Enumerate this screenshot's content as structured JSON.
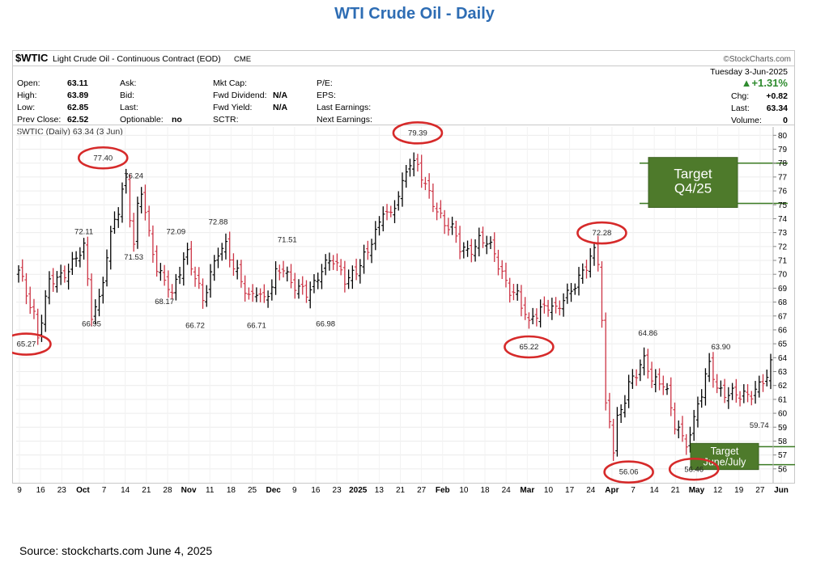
{
  "page": {
    "title": "WTI Crude Oil - Daily",
    "source": "Source: stockcharts.com June 4, 2025"
  },
  "header": {
    "symbol": "$WTIC",
    "description": "Light Crude Oil - Continuous Contract (EOD)",
    "exchange": "CME",
    "brand": "©StockCharts.com",
    "date": "Tuesday  3-Jun-2025",
    "change_pct": "▲+1.31%",
    "chg_label": "Chg:",
    "chg_value": "+0.82",
    "last_label": "Last:",
    "last_value": "63.34",
    "volume_label": "Volume:",
    "volume_value": "0",
    "series_label": "$WTIC (Daily) 63.34 (3 Jun)"
  },
  "stats": {
    "col1": [
      {
        "label": "Open:",
        "value": "63.11"
      },
      {
        "label": "High:",
        "value": "63.89"
      },
      {
        "label": "Low:",
        "value": "62.85"
      },
      {
        "label": "Prev Close:",
        "value": "62.52"
      }
    ],
    "col2": [
      {
        "label": "Ask:",
        "value": ""
      },
      {
        "label": "Bid:",
        "value": ""
      },
      {
        "label": "Last:",
        "value": ""
      },
      {
        "label": "Optionable:",
        "value": "no"
      }
    ],
    "col3": [
      {
        "label": "Mkt Cap:",
        "value": ""
      },
      {
        "label": "Fwd Dividend:",
        "value": "N/A"
      },
      {
        "label": "Fwd Yield:",
        "value": "N/A"
      },
      {
        "label": "SCTR:",
        "value": ""
      }
    ],
    "col4": [
      {
        "label": "P/E:"
      },
      {
        "label": "EPS:"
      },
      {
        "label": "Last Earnings:"
      },
      {
        "label": "Next Earnings:"
      }
    ]
  },
  "chart_data": {
    "type": "ohlc",
    "ylim": [
      55,
      80.6
    ],
    "y_ticks": [
      56,
      57,
      58,
      59,
      60,
      61,
      62,
      63,
      64,
      65,
      66,
      67,
      68,
      69,
      70,
      71,
      72,
      73,
      74,
      75,
      76,
      77,
      78,
      79,
      80
    ],
    "x_ticks": [
      {
        "label": "9",
        "bold": false
      },
      {
        "label": "16",
        "bold": false
      },
      {
        "label": "23",
        "bold": false
      },
      {
        "label": "Oct",
        "bold": true
      },
      {
        "label": "7",
        "bold": false
      },
      {
        "label": "14",
        "bold": false
      },
      {
        "label": "21",
        "bold": false
      },
      {
        "label": "28",
        "bold": false
      },
      {
        "label": "Nov",
        "bold": true
      },
      {
        "label": "11",
        "bold": false
      },
      {
        "label": "18",
        "bold": false
      },
      {
        "label": "25",
        "bold": false
      },
      {
        "label": "Dec",
        "bold": true
      },
      {
        "label": "9",
        "bold": false
      },
      {
        "label": "16",
        "bold": false
      },
      {
        "label": "23",
        "bold": false
      },
      {
        "label": "2025",
        "bold": true
      },
      {
        "label": "13",
        "bold": false
      },
      {
        "label": "21",
        "bold": false
      },
      {
        "label": "27",
        "bold": false
      },
      {
        "label": "Feb",
        "bold": true
      },
      {
        "label": "10",
        "bold": false
      },
      {
        "label": "18",
        "bold": false
      },
      {
        "label": "24",
        "bold": false
      },
      {
        "label": "Mar",
        "bold": true
      },
      {
        "label": "10",
        "bold": false
      },
      {
        "label": "17",
        "bold": false
      },
      {
        "label": "24",
        "bold": false
      },
      {
        "label": "Apr",
        "bold": true
      },
      {
        "label": "7",
        "bold": false
      },
      {
        "label": "14",
        "bold": false
      },
      {
        "label": "21",
        "bold": false
      },
      {
        "label": "May",
        "bold": true
      },
      {
        "label": "12",
        "bold": false
      },
      {
        "label": "19",
        "bold": false
      },
      {
        "label": "27",
        "bold": false
      },
      {
        "label": "Jun",
        "bold": true
      }
    ],
    "anchors": [
      [
        0,
        70.1
      ],
      [
        4,
        67.2
      ],
      [
        5,
        65.6
      ],
      [
        8,
        69.3
      ],
      [
        11,
        69.9
      ],
      [
        14,
        70.8
      ],
      [
        17,
        71.8
      ],
      [
        19,
        67.2
      ],
      [
        21,
        68.3
      ],
      [
        23,
        71.2
      ],
      [
        25,
        73.9
      ],
      [
        26,
        74.5
      ],
      [
        27,
        75.9
      ],
      [
        28,
        77.1
      ],
      [
        29,
        74.4
      ],
      [
        30,
        72.1
      ],
      [
        31,
        74.8
      ],
      [
        32,
        75.9
      ],
      [
        34,
        72.7
      ],
      [
        36,
        70.6
      ],
      [
        39,
        69.2
      ],
      [
        40,
        68.3
      ],
      [
        43,
        71.1
      ],
      [
        44,
        71.6
      ],
      [
        46,
        70.0
      ],
      [
        48,
        68.0
      ],
      [
        49,
        68.8
      ],
      [
        52,
        71.8
      ],
      [
        54,
        72.2
      ],
      [
        56,
        70.4
      ],
      [
        60,
        68.4
      ],
      [
        62,
        69.0
      ],
      [
        64,
        68.0
      ],
      [
        66,
        69.0
      ],
      [
        67,
        70.0
      ],
      [
        69,
        70.7
      ],
      [
        71,
        69.4
      ],
      [
        73,
        68.8
      ],
      [
        75,
        68.6
      ],
      [
        77,
        69.4
      ],
      [
        79,
        70.5
      ],
      [
        82,
        70.9
      ],
      [
        85,
        69.8
      ],
      [
        88,
        70.2
      ],
      [
        91,
        71.5
      ],
      [
        92,
        72.5
      ],
      [
        94,
        73.8
      ],
      [
        95,
        74.8
      ],
      [
        97,
        74.0
      ],
      [
        100,
        76.4
      ],
      [
        101,
        77.6
      ],
      [
        102,
        78.3
      ],
      [
        104,
        77.8
      ],
      [
        106,
        76.2
      ],
      [
        107,
        75.6
      ],
      [
        109,
        74.7
      ],
      [
        111,
        73.8
      ],
      [
        113,
        73.2
      ],
      [
        115,
        71.8
      ],
      [
        117,
        71.7
      ],
      [
        119,
        72.2
      ],
      [
        120,
        72.5
      ],
      [
        122,
        72.2
      ],
      [
        123,
        71.8
      ],
      [
        124,
        71.4
      ],
      [
        126,
        70.2
      ],
      [
        128,
        68.9
      ],
      [
        130,
        68.3
      ],
      [
        131,
        67.6
      ],
      [
        132,
        67.2
      ],
      [
        133,
        66.4
      ],
      [
        134,
        67.2
      ],
      [
        136,
        67.5
      ],
      [
        138,
        67.6
      ],
      [
        140,
        67.3
      ],
      [
        142,
        68.4
      ],
      [
        144,
        69.0
      ],
      [
        146,
        69.5
      ],
      [
        148,
        70.5
      ],
      [
        149,
        71.2
      ],
      [
        150,
        71.8
      ],
      [
        151,
        71.2
      ],
      [
        152,
        66.9
      ],
      [
        153,
        60.4
      ],
      [
        154,
        59.4
      ],
      [
        155,
        57.2
      ],
      [
        156,
        59.4
      ],
      [
        157,
        60.2
      ],
      [
        158,
        61.2
      ],
      [
        159,
        62.3
      ],
      [
        161,
        62.9
      ],
      [
        162,
        63.4
      ],
      [
        163,
        63.6
      ],
      [
        165,
        62.5
      ],
      [
        167,
        62.3
      ],
      [
        168,
        62.4
      ],
      [
        169,
        61.6
      ],
      [
        170,
        60.1
      ],
      [
        171,
        59.0
      ],
      [
        172,
        58.8
      ],
      [
        173,
        58.0
      ],
      [
        174,
        57.9
      ],
      [
        175,
        58.8
      ],
      [
        176,
        59.6
      ],
      [
        177,
        60.8
      ],
      [
        178,
        61.4
      ],
      [
        179,
        62.4
      ],
      [
        180,
        63.4
      ],
      [
        181,
        62.7
      ],
      [
        182,
        61.8
      ],
      [
        184,
        61.6
      ],
      [
        186,
        61.4
      ],
      [
        188,
        61.1
      ],
      [
        190,
        61.3
      ],
      [
        192,
        61.8
      ],
      [
        194,
        62.4
      ],
      [
        195,
        62.5
      ],
      [
        196,
        63.3
      ]
    ],
    "callouts": [
      {
        "label": "65.27",
        "circled": true,
        "day": 2,
        "price": 64.8
      },
      {
        "label": "66.95",
        "circled": false,
        "day": 19,
        "price": 66.25
      },
      {
        "label": "72.11",
        "circled": false,
        "day": 17,
        "price": 72.9
      },
      {
        "label": "77.40",
        "circled": true,
        "day": 22,
        "price": 78.2
      },
      {
        "label": "76.24",
        "circled": false,
        "day": 30,
        "price": 76.9
      },
      {
        "label": "71.53",
        "circled": false,
        "day": 30,
        "price": 71.05
      },
      {
        "label": "72.09",
        "circled": false,
        "day": 41,
        "price": 72.9
      },
      {
        "label": "68.17",
        "circled": false,
        "day": 38,
        "price": 67.85
      },
      {
        "label": "66.72",
        "circled": false,
        "day": 46,
        "price": 66.15
      },
      {
        "label": "72.88",
        "circled": false,
        "day": 52,
        "price": 73.6
      },
      {
        "label": "66.71",
        "circled": false,
        "day": 62,
        "price": 66.15
      },
      {
        "label": "71.51",
        "circled": false,
        "day": 70,
        "price": 72.3
      },
      {
        "label": "66.98",
        "circled": false,
        "day": 80,
        "price": 66.25
      },
      {
        "label": "79.39",
        "circled": true,
        "day": 104,
        "price": 80.0
      },
      {
        "label": "72.28",
        "circled": true,
        "day": 152,
        "price": 72.8
      },
      {
        "label": "65.22",
        "circled": true,
        "day": 133,
        "price": 64.6
      },
      {
        "label": "64.86",
        "circled": false,
        "day": 164,
        "price": 65.6
      },
      {
        "label": "56.06",
        "circled": true,
        "day": 159,
        "price": 55.6
      },
      {
        "label": "56.46",
        "circled": true,
        "day": 176,
        "price": 55.8
      },
      {
        "label": "63.90",
        "circled": false,
        "day": 183,
        "price": 64.6
      },
      {
        "label": "59.74",
        "circled": false,
        "day": 193,
        "price": 58.95
      }
    ],
    "targets": [
      {
        "line1": "Target",
        "line2": "Q4/25",
        "price_top": 78.0,
        "price_bottom": 75.1,
        "size": "large"
      },
      {
        "line1": "Target",
        "line2": "June/July",
        "price_top": 57.6,
        "price_bottom": 56.3,
        "size": "small"
      }
    ]
  }
}
